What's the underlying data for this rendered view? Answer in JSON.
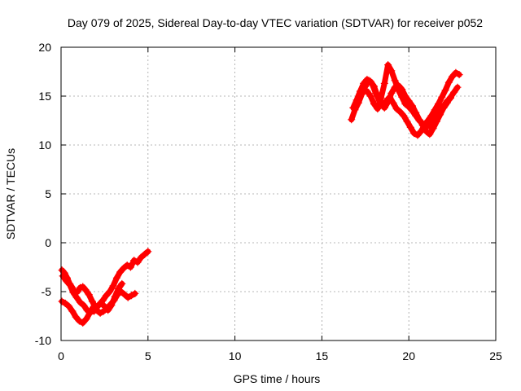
{
  "chart_data": {
    "type": "scatter",
    "title": "Day 079 of 2025, Sidereal Day-to-day VTEC variation (SDTVAR) for receiver p052",
    "xlabel": "GPS time / hours",
    "ylabel": "SDTVAR / TECUs",
    "xlim": [
      0,
      25
    ],
    "ylim": [
      -10,
      20
    ],
    "x_ticks": [
      0,
      5,
      10,
      15,
      20,
      25
    ],
    "y_ticks": [
      -10,
      -5,
      0,
      5,
      10,
      15,
      20
    ],
    "grid": true,
    "color": "#ff0000",
    "series": [
      {
        "x": [
          0.05,
          0.2,
          0.35,
          0.5,
          0.65,
          0.8,
          0.95,
          1.1,
          1.25,
          1.4,
          1.6,
          1.8,
          2.0,
          2.2,
          2.4,
          2.6,
          2.8,
          3.0,
          3.2,
          3.4,
          3.6,
          3.8,
          4.0,
          4.2,
          4.4,
          4.6,
          4.8,
          5.0
        ],
        "y": [
          -2.8,
          -3.1,
          -3.6,
          -4.2,
          -4.6,
          -5.2,
          -5.0,
          -4.6,
          -4.5,
          -4.8,
          -5.3,
          -6.0,
          -6.7,
          -6.3,
          -5.9,
          -5.4,
          -5.0,
          -4.4,
          -3.6,
          -3.0,
          -2.6,
          -2.3,
          -2.5,
          -1.8,
          -2.0,
          -1.5,
          -1.2,
          -0.9
        ]
      },
      {
        "x": [
          0.05,
          0.25,
          0.45,
          0.65,
          0.85,
          1.05,
          1.25,
          1.45,
          1.65,
          1.85,
          2.05,
          2.25,
          2.45,
          2.65,
          2.85,
          3.05,
          3.25,
          3.45,
          3.65,
          3.85,
          4.05,
          4.25
        ],
        "y": [
          -6.0,
          -6.2,
          -6.5,
          -7.0,
          -7.6,
          -8.0,
          -8.2,
          -7.8,
          -7.2,
          -6.6,
          -6.9,
          -7.2,
          -7.0,
          -6.7,
          -6.3,
          -5.9,
          -5.3,
          -5.0,
          -5.3,
          -5.6,
          -5.4,
          -5.2
        ]
      },
      {
        "x": [
          0.1,
          0.3,
          0.5,
          0.7,
          0.9,
          1.1,
          1.3,
          1.5,
          1.7,
          1.9,
          2.1,
          2.3,
          2.5,
          2.7,
          2.9,
          3.1,
          3.3,
          3.5
        ],
        "y": [
          -3.4,
          -3.9,
          -4.3,
          -5.1,
          -5.6,
          -6.1,
          -6.4,
          -6.9,
          -7.1,
          -7.0,
          -6.5,
          -6.2,
          -6.5,
          -6.9,
          -6.4,
          -5.5,
          -4.7,
          -4.2
        ]
      },
      {
        "x": [
          16.7,
          16.9,
          17.1,
          17.3,
          17.5,
          17.7,
          17.9,
          18.1,
          18.3,
          18.5,
          18.7,
          18.9,
          19.1,
          19.3,
          19.5,
          19.7,
          19.9,
          20.1,
          20.3,
          20.5,
          20.7,
          20.9,
          21.1,
          21.3,
          21.5,
          21.7,
          21.9,
          22.1,
          22.3,
          22.5,
          22.7,
          22.9
        ],
        "y": [
          12.6,
          13.6,
          14.3,
          15.2,
          16.0,
          16.6,
          16.2,
          15.3,
          14.5,
          14.1,
          14.5,
          14.9,
          14.3,
          13.7,
          13.4,
          13.0,
          12.4,
          11.8,
          11.2,
          11.0,
          11.4,
          12.0,
          12.5,
          13.0,
          13.6,
          14.2,
          14.9,
          15.6,
          16.4,
          17.0,
          17.4,
          17.2
        ]
      },
      {
        "x": [
          16.8,
          17.0,
          17.2,
          17.4,
          17.6,
          17.8,
          18.0,
          18.2,
          18.4,
          18.6,
          18.8,
          19.0,
          19.2,
          19.4,
          19.6,
          19.8,
          20.0,
          20.2,
          20.4,
          20.6,
          20.8,
          21.0,
          21.2,
          21.4,
          21.6,
          21.8,
          22.0,
          22.2,
          22.4,
          22.6,
          22.8
        ],
        "y": [
          13.8,
          14.6,
          15.5,
          16.3,
          16.7,
          16.5,
          16.0,
          15.0,
          14.2,
          13.8,
          14.4,
          15.3,
          15.9,
          16.1,
          15.7,
          15.0,
          14.5,
          14.0,
          13.3,
          12.6,
          12.0,
          11.4,
          11.1,
          11.7,
          12.4,
          13.1,
          13.8,
          14.3,
          14.9,
          15.4,
          15.9
        ]
      },
      {
        "x": [
          17.6,
          17.8,
          18.0,
          18.2,
          18.4,
          18.6,
          18.8,
          19.0,
          19.2,
          19.4,
          19.6,
          19.8,
          20.0,
          20.2,
          20.4,
          20.6,
          20.8,
          21.0,
          21.2,
          21.4,
          21.6,
          21.8,
          22.0,
          22.2,
          22.4
        ],
        "y": [
          15.5,
          15.0,
          14.2,
          13.7,
          14.8,
          16.3,
          18.2,
          17.6,
          16.6,
          15.6,
          14.9,
          14.2,
          13.9,
          13.5,
          13.0,
          12.5,
          12.2,
          12.0,
          11.9,
          12.4,
          12.9,
          13.4,
          14.0,
          14.5,
          14.8
        ]
      }
    ]
  }
}
